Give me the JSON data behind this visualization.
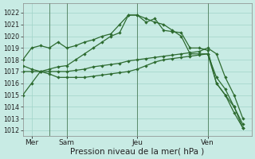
{
  "bg_color": "#c8ebe4",
  "grid_color": "#a0d4c8",
  "line_color": "#2d6b30",
  "marker_size": 2.2,
  "line_width": 0.9,
  "xlabel": "Pression niveau de la mer( hPa )",
  "xlabel_fontsize": 7.5,
  "ylim": [
    1011.5,
    1022.8
  ],
  "yticks": [
    1012,
    1013,
    1014,
    1015,
    1016,
    1017,
    1018,
    1019,
    1020,
    1021,
    1022
  ],
  "ytick_fontsize": 5.8,
  "xtick_fontsize": 6.5,
  "day_labels": [
    "Mer",
    "Sam",
    "Jeu",
    "Ven"
  ],
  "day_positions": [
    1,
    5,
    13,
    21
  ],
  "xlim": [
    0,
    26
  ],
  "vline_positions": [
    3,
    5,
    13,
    21
  ],
  "series1_x": [
    0,
    1,
    2,
    3,
    4,
    5,
    6,
    7,
    8,
    9,
    10,
    11,
    12,
    13,
    14,
    15,
    16,
    17,
    18,
    19,
    20,
    21,
    22,
    23,
    24,
    25
  ],
  "series1_y": [
    1015.0,
    1016.0,
    1017.0,
    1017.2,
    1017.4,
    1017.5,
    1018.0,
    1018.5,
    1019.0,
    1019.5,
    1020.0,
    1020.3,
    1021.8,
    1021.8,
    1021.2,
    1021.5,
    1020.5,
    1020.4,
    1020.3,
    1019.0,
    1019.0,
    1018.8,
    1016.0,
    1015.0,
    1013.5,
    1012.2
  ],
  "series2_x": [
    0,
    1,
    2,
    3,
    4,
    5,
    6,
    7,
    8,
    9,
    10,
    11,
    12,
    13,
    14,
    15,
    16,
    17,
    18,
    19,
    20,
    21,
    22,
    23,
    24,
    25
  ],
  "series2_y": [
    1018.0,
    1019.0,
    1019.2,
    1019.0,
    1019.5,
    1019.0,
    1019.2,
    1019.5,
    1019.7,
    1020.0,
    1020.2,
    1021.0,
    1021.8,
    1021.8,
    1021.5,
    1021.2,
    1021.0,
    1020.5,
    1020.0,
    1018.5,
    1018.5,
    1018.5,
    1016.0,
    1015.0,
    1014.0,
    1012.2
  ],
  "series3_x": [
    0,
    1,
    2,
    3,
    4,
    5,
    6,
    7,
    8,
    9,
    10,
    11,
    12,
    13,
    14,
    15,
    16,
    17,
    18,
    19,
    20,
    21,
    22,
    23,
    24,
    25
  ],
  "series3_y": [
    1017.0,
    1017.0,
    1017.0,
    1017.0,
    1017.0,
    1017.0,
    1017.1,
    1017.2,
    1017.4,
    1017.5,
    1017.6,
    1017.7,
    1017.9,
    1018.0,
    1018.1,
    1018.2,
    1018.3,
    1018.4,
    1018.5,
    1018.6,
    1018.7,
    1019.0,
    1018.5,
    1016.5,
    1015.0,
    1013.0
  ],
  "series4_x": [
    0,
    1,
    2,
    3,
    4,
    5,
    6,
    7,
    8,
    9,
    10,
    11,
    12,
    13,
    14,
    15,
    16,
    17,
    18,
    19,
    20,
    21,
    22,
    23,
    24,
    25
  ],
  "series4_y": [
    1017.5,
    1017.2,
    1017.0,
    1016.8,
    1016.5,
    1016.5,
    1016.5,
    1016.5,
    1016.6,
    1016.7,
    1016.8,
    1016.9,
    1017.0,
    1017.2,
    1017.5,
    1017.8,
    1018.0,
    1018.1,
    1018.2,
    1018.3,
    1018.4,
    1018.5,
    1016.5,
    1015.5,
    1014.0,
    1012.5
  ]
}
